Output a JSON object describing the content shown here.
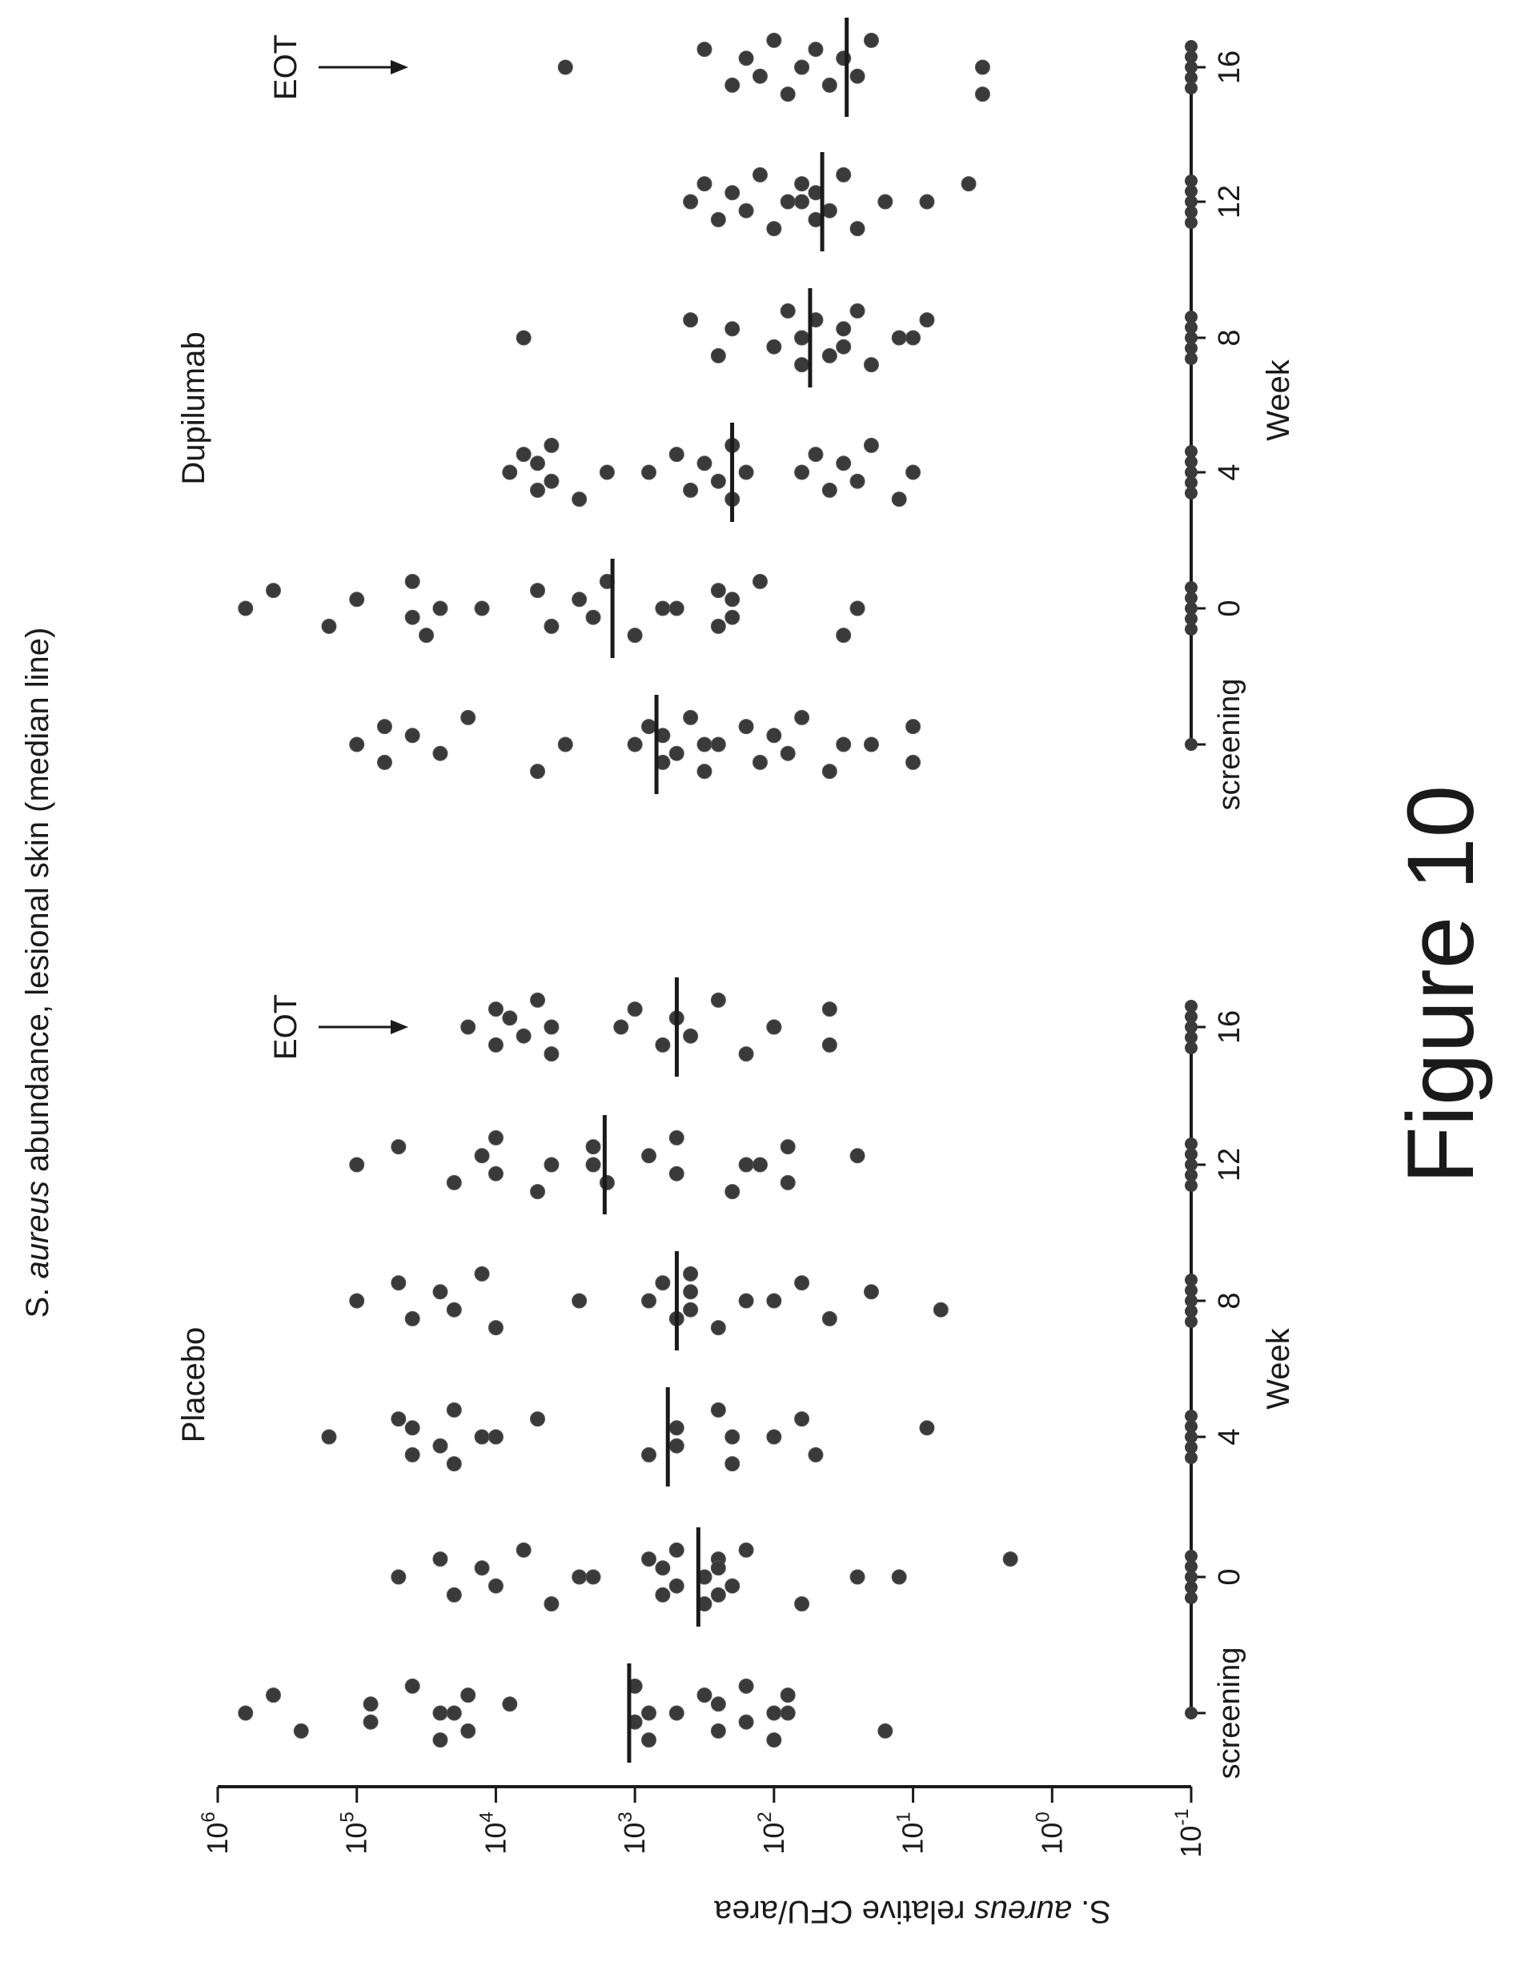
{
  "figure_label": "Figure 10",
  "chart_title": {
    "prefix": "S. ",
    "italic": "aureus",
    "suffix": " abundance, lesional skin (median line)"
  },
  "y_axis": {
    "label_prefix": "S. ",
    "label_italic": "aureus",
    "label_suffix": " relative CFU/area",
    "ticks": [
      {
        "base": "10",
        "exp": "-1",
        "value": -1
      },
      {
        "base": "10",
        "exp": "0",
        "value": 0
      },
      {
        "base": "10",
        "exp": "1",
        "value": 1
      },
      {
        "base": "10",
        "exp": "2",
        "value": 2
      },
      {
        "base": "10",
        "exp": "3",
        "value": 3
      },
      {
        "base": "10",
        "exp": "4",
        "value": 4
      },
      {
        "base": "10",
        "exp": "5",
        "value": 5
      },
      {
        "base": "10",
        "exp": "6",
        "value": 6
      }
    ]
  },
  "colors": {
    "points": "#3a3a3a",
    "axis": "#1a1a1a"
  },
  "chart_data": {
    "type": "scatter",
    "y_scale": "log10",
    "ylim": [
      0.1,
      1000000
    ],
    "x_categories": [
      "screening",
      "0",
      "4",
      "8",
      "12",
      "16"
    ],
    "panels": [
      {
        "name": "Placebo",
        "xlabel": "Week",
        "annotation": "EOT",
        "annotation_at": "16",
        "groups": [
          {
            "x": "screening",
            "median": 1100,
            "log10_values": [
              5.8,
              5.6,
              5.4,
              4.9,
              4.9,
              4.6,
              4.4,
              4.4,
              4.3,
              4.2,
              4.2,
              3.9,
              3.0,
              3.0,
              2.9,
              2.9,
              2.7,
              2.5,
              2.4,
              2.4,
              2.2,
              2.2,
              2.0,
              2.0,
              1.9,
              1.9,
              1.2
            ]
          },
          {
            "x": "0",
            "median": 350,
            "log10_values": [
              4.7,
              4.4,
              4.3,
              4.1,
              4.0,
              3.8,
              3.6,
              3.4,
              3.3,
              2.9,
              2.8,
              2.8,
              2.7,
              2.7,
              2.5,
              2.5,
              2.5,
              2.4,
              2.4,
              2.4,
              2.3,
              2.2,
              1.8,
              1.4,
              1.1,
              0.3
            ]
          },
          {
            "x": "4",
            "median": 580,
            "log10_values": [
              5.2,
              4.7,
              4.6,
              4.6,
              4.4,
              4.3,
              4.3,
              4.1,
              4.0,
              3.7,
              2.9,
              2.7,
              2.7,
              2.4,
              2.3,
              2.3,
              2.0,
              1.8,
              1.7,
              0.9
            ]
          },
          {
            "x": "8",
            "median": 500,
            "log10_values": [
              5.0,
              4.7,
              4.6,
              4.4,
              4.3,
              4.1,
              4.0,
              3.4,
              2.9,
              2.8,
              2.7,
              2.6,
              2.6,
              2.6,
              2.4,
              2.2,
              2.0,
              1.8,
              1.6,
              1.3,
              0.8
            ]
          },
          {
            "x": "12",
            "median": 1650,
            "log10_values": [
              5.0,
              4.7,
              4.3,
              4.1,
              4.0,
              4.0,
              3.7,
              3.6,
              3.3,
              3.3,
              3.2,
              2.9,
              2.7,
              2.7,
              2.3,
              2.2,
              2.1,
              1.9,
              1.9,
              1.4
            ]
          },
          {
            "x": "16",
            "median": 500,
            "log10_values": [
              4.2,
              4.0,
              4.0,
              3.9,
              3.8,
              3.7,
              3.6,
              3.6,
              3.1,
              3.0,
              2.8,
              2.7,
              2.6,
              2.4,
              2.2,
              2.0,
              2.0,
              1.6,
              1.6
            ]
          }
        ]
      },
      {
        "name": "Dupilumab",
        "xlabel": "Week",
        "annotation": "EOT",
        "annotation_at": "16",
        "groups": [
          {
            "x": "screening",
            "median": 700,
            "log10_values": [
              5.0,
              4.8,
              4.8,
              4.6,
              4.4,
              4.2,
              3.7,
              3.5,
              3.0,
              2.9,
              2.8,
              2.8,
              2.7,
              2.6,
              2.5,
              2.5,
              2.4,
              2.2,
              2.1,
              2.0,
              1.9,
              1.8,
              1.6,
              1.5,
              1.3,
              1.0,
              1.0
            ]
          },
          {
            "x": "0",
            "median": 1450,
            "log10_values": [
              5.8,
              5.6,
              5.2,
              5.0,
              4.6,
              4.6,
              4.5,
              4.4,
              4.1,
              3.7,
              3.6,
              3.4,
              3.3,
              3.2,
              3.0,
              2.8,
              2.7,
              2.4,
              2.4,
              2.3,
              2.3,
              2.1,
              1.5,
              1.4,
              1.4
            ]
          },
          {
            "x": "4",
            "median": 200,
            "log10_values": [
              3.9,
              3.8,
              3.7,
              3.7,
              3.6,
              3.6,
              3.4,
              3.2,
              2.9,
              2.7,
              2.6,
              2.5,
              2.4,
              2.3,
              2.3,
              2.2,
              1.8,
              1.7,
              1.6,
              1.5,
              1.4,
              1.3,
              1.1,
              1.0
            ]
          },
          {
            "x": "8",
            "median": 55,
            "log10_values": [
              3.8,
              2.6,
              2.4,
              2.3,
              2.0,
              1.9,
              1.8,
              1.8,
              1.8,
              1.7,
              1.6,
              1.5,
              1.5,
              1.4,
              1.3,
              1.1,
              1.0,
              0.9
            ]
          },
          {
            "x": "12",
            "median": 45,
            "log10_values": [
              2.6,
              2.5,
              2.4,
              2.3,
              2.2,
              2.1,
              2.0,
              1.9,
              1.8,
              1.8,
              1.7,
              1.7,
              1.6,
              1.5,
              1.4,
              1.2,
              0.9,
              0.6
            ]
          },
          {
            "x": "16",
            "median": 30,
            "log10_values": [
              3.5,
              2.5,
              2.3,
              2.2,
              2.1,
              2.0,
              1.9,
              1.8,
              1.8,
              1.7,
              1.6,
              1.5,
              1.4,
              1.3,
              0.5,
              0.5
            ]
          }
        ]
      }
    ]
  }
}
